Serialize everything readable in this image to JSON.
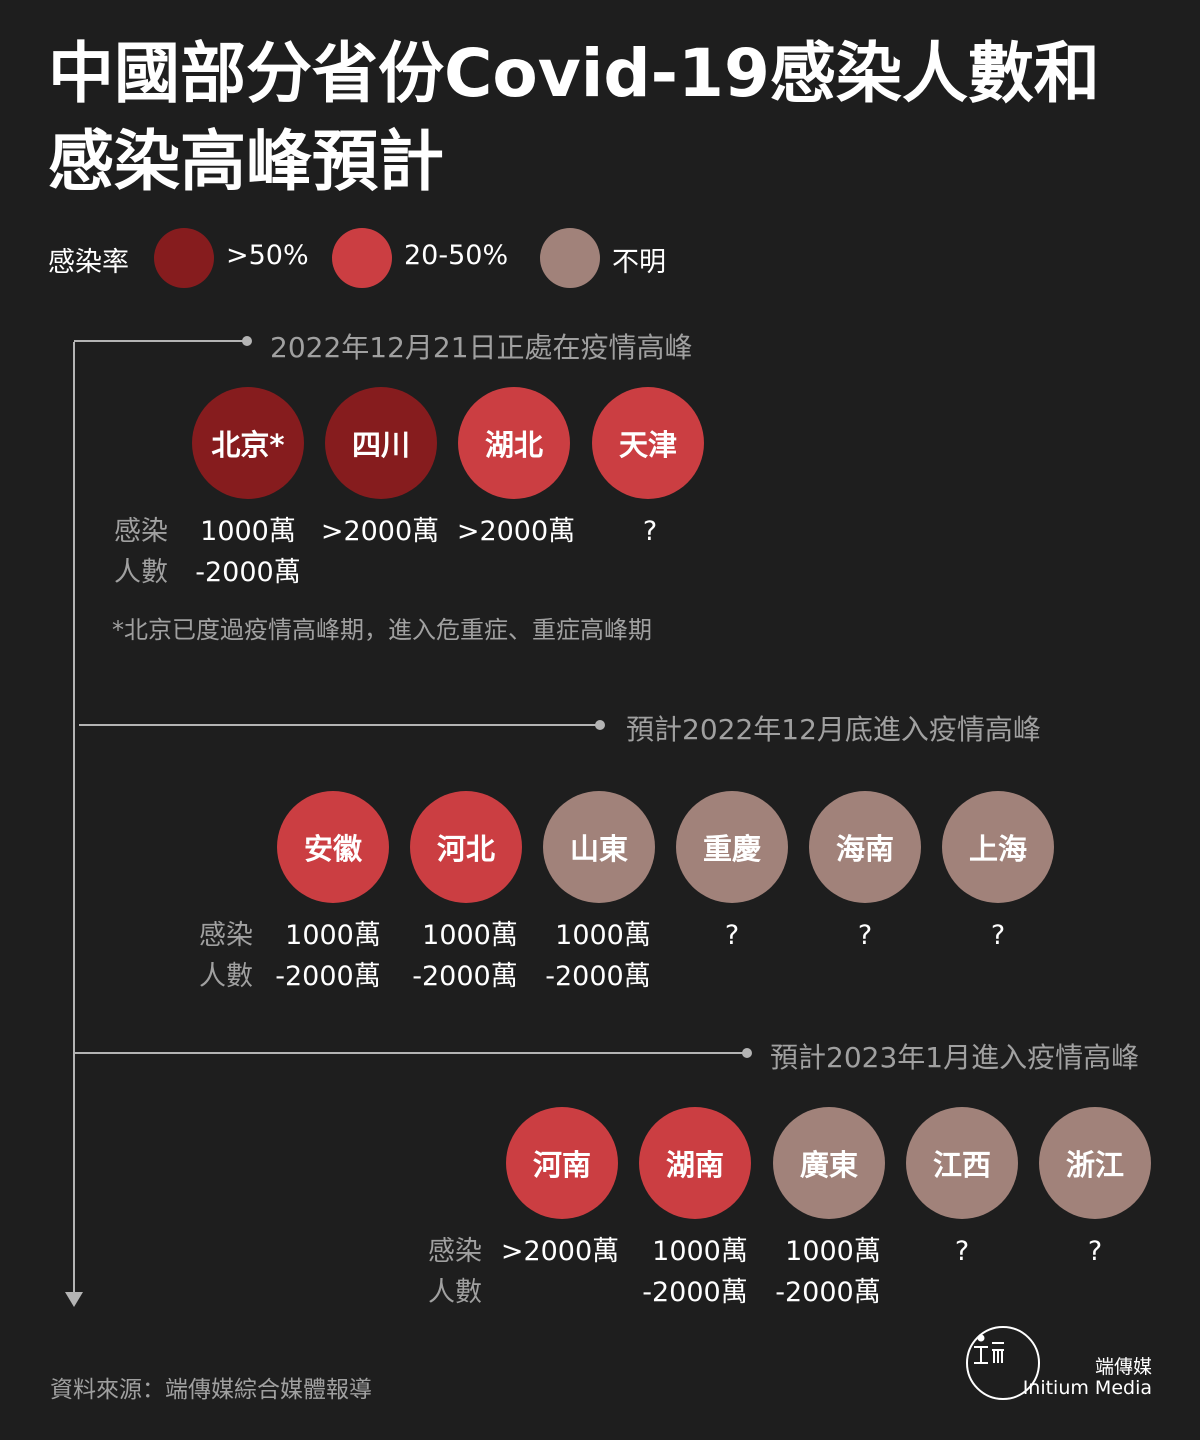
{
  "title": "中國部分省份Covid-19感染人數和感染高峰預計",
  "legend": {
    "label": "感染率",
    "items": [
      {
        "label": ">50%",
        "color": "#861c1e"
      },
      {
        "label": "20-50%",
        "color": "#cb3e42"
      },
      {
        "label": "不明",
        "color": "#a1827a"
      }
    ]
  },
  "row_header": {
    "line1": "感染",
    "line2": "人數"
  },
  "phases": [
    {
      "label": "2022年12月21日正處在疫情高峰",
      "provinces": [
        {
          "name": "北京*",
          "rate": "high",
          "infections_line1": "1000萬",
          "infections_line2": "-2000萬"
        },
        {
          "name": "四川",
          "rate": "high",
          "infections_line1": ">2000萬",
          "infections_line2": ""
        },
        {
          "name": "湖北",
          "rate": "mid",
          "infections_line1": ">2000萬",
          "infections_line2": ""
        },
        {
          "name": "天津",
          "rate": "mid",
          "infections_line1": "?",
          "infections_line2": ""
        }
      ],
      "footnote": "*北京已度過疫情高峰期，進入危重症、重症高峰期"
    },
    {
      "label": "預計2022年12月底進入疫情高峰",
      "provinces": [
        {
          "name": "安徽",
          "rate": "mid",
          "infections_line1": "1000萬",
          "infections_line2": "-2000萬"
        },
        {
          "name": "河北",
          "rate": "mid",
          "infections_line1": "1000萬",
          "infections_line2": "-2000萬"
        },
        {
          "name": "山東",
          "rate": "unknown",
          "infections_line1": "1000萬",
          "infections_line2": "-2000萬"
        },
        {
          "name": "重慶",
          "rate": "unknown",
          "infections_line1": "?",
          "infections_line2": ""
        },
        {
          "name": "海南",
          "rate": "unknown",
          "infections_line1": "?",
          "infections_line2": ""
        },
        {
          "name": "上海",
          "rate": "unknown",
          "infections_line1": "?",
          "infections_line2": ""
        }
      ]
    },
    {
      "label": "預計2023年1月進入疫情高峰",
      "provinces": [
        {
          "name": "河南",
          "rate": "mid",
          "infections_line1": ">2000萬",
          "infections_line2": ""
        },
        {
          "name": "湖南",
          "rate": "mid",
          "infections_line1": "1000萬",
          "infections_line2": "-2000萬"
        },
        {
          "name": "廣東",
          "rate": "unknown",
          "infections_line1": "1000萬",
          "infections_line2": "-2000萬"
        },
        {
          "name": "江西",
          "rate": "unknown",
          "infections_line1": "?",
          "infections_line2": ""
        },
        {
          "name": "浙江",
          "rate": "unknown",
          "infections_line1": "?",
          "infections_line2": ""
        }
      ]
    }
  ],
  "source": "資料來源：端傳媒綜合媒體報導",
  "brand": {
    "name_cn": "端傳媒",
    "name_en": "Initium Media",
    "logo_icon": "initium-logo-icon"
  }
}
